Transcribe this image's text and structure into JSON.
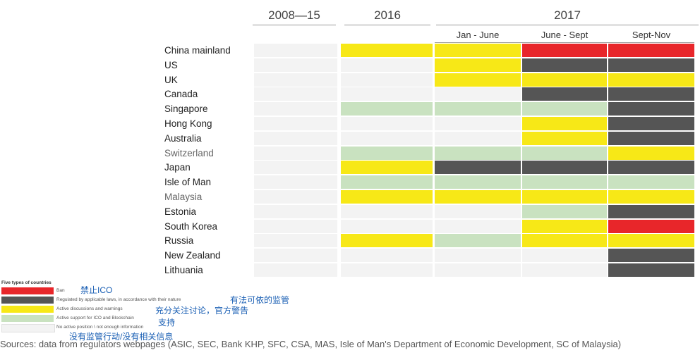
{
  "chart_data": {
    "type": "heatmap",
    "periods": [
      {
        "label": "2008—15",
        "group": "2008—15"
      },
      {
        "label": "2016",
        "group": "2016"
      },
      {
        "label": "Jan - June",
        "group": "2017"
      },
      {
        "label": "June - Sept",
        "group": "2017"
      },
      {
        "label": "Sept-Nov",
        "group": "2017"
      }
    ],
    "period_groups": [
      "2008—15",
      "2016",
      "2017"
    ],
    "categories": {
      "ban": {
        "color": "#e8262a",
        "label": "Ban"
      },
      "regulated": {
        "color": "#555555",
        "label": "Regulated by applicable laws, in accordance with their nature"
      },
      "active": {
        "color": "#f7e817",
        "label": "Active discussions and warnings"
      },
      "support": {
        "color": "#c9e2c0",
        "label": "Active support for ICO and Blockchain"
      },
      "none": {
        "color": "#f3f3f3",
        "label": "No active position \\ not enough information"
      }
    },
    "rows": [
      {
        "country": "China mainland",
        "values": [
          "none",
          "active",
          "active",
          "ban",
          "ban"
        ]
      },
      {
        "country": "US",
        "values": [
          "none",
          "none",
          "active",
          "regulated",
          "regulated"
        ]
      },
      {
        "country": "UK",
        "values": [
          "none",
          "none",
          "active",
          "active",
          "active"
        ]
      },
      {
        "country": "Canada",
        "values": [
          "none",
          "none",
          "none",
          "regulated",
          "regulated"
        ]
      },
      {
        "country": "Singapore",
        "values": [
          "none",
          "support",
          "support",
          "support",
          "regulated"
        ]
      },
      {
        "country": "Hong Kong",
        "values": [
          "none",
          "none",
          "none",
          "active",
          "regulated"
        ]
      },
      {
        "country": "Australia",
        "values": [
          "none",
          "none",
          "none",
          "active",
          "regulated"
        ]
      },
      {
        "country": "Switzerland",
        "values": [
          "none",
          "support",
          "support",
          "support",
          "active"
        ]
      },
      {
        "country": "Japan",
        "values": [
          "none",
          "active",
          "regulated",
          "regulated",
          "regulated"
        ]
      },
      {
        "country": "Isle of Man",
        "values": [
          "none",
          "support",
          "support",
          "support",
          "support"
        ]
      },
      {
        "country": "Malaysia",
        "values": [
          "none",
          "active",
          "active",
          "active",
          "active"
        ]
      },
      {
        "country": "Estonia",
        "values": [
          "none",
          "none",
          "none",
          "support",
          "regulated"
        ]
      },
      {
        "country": "South Korea",
        "values": [
          "none",
          "none",
          "none",
          "active",
          "ban"
        ]
      },
      {
        "country": "Russia",
        "values": [
          "none",
          "active",
          "support",
          "active",
          "active"
        ]
      },
      {
        "country": "New Zealand",
        "values": [
          "none",
          "none",
          "none",
          "none",
          "regulated"
        ]
      },
      {
        "country": "Lithuania",
        "values": [
          "none",
          "none",
          "none",
          "none",
          "regulated"
        ]
      }
    ],
    "legend_title": "Five types of countries",
    "legend_order": [
      "ban",
      "regulated",
      "active",
      "support",
      "none"
    ],
    "legend_placement": "bottom-left"
  },
  "annotations": {
    "ban": "禁止ICO",
    "regulated": "有法可依的监管",
    "active": "充分关注讨论，官方警告",
    "support": "支持",
    "none": "没有监管行动/没有相关信息"
  },
  "sources": "Sources: data from regulators webpages (ASIC, SEC, Bank KHP, SFC, CSA, MAS, Isle of Man's Department of Economic Development, SC of Malaysia)"
}
